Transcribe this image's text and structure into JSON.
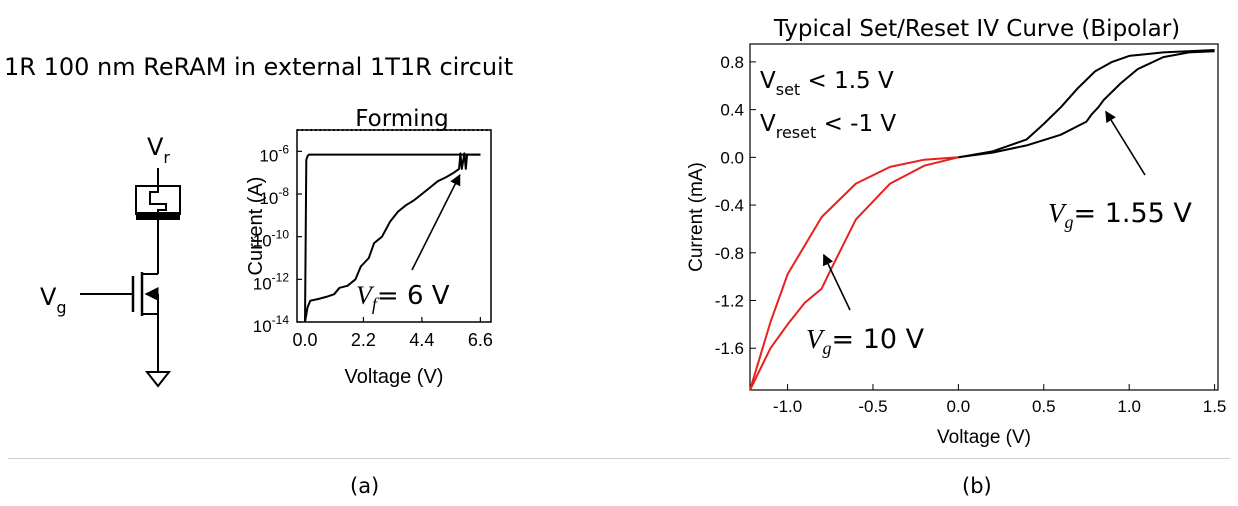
{
  "panel_a": {
    "title": "1R 100 nm ReRAM in external 1T1R circuit",
    "circuit": {
      "top_label_main": "V",
      "top_label_sub": "r",
      "gate_label_main": "V",
      "gate_label_sub": "g",
      "ground_icon": "ground-triangle"
    },
    "caption": "(a)"
  },
  "panel_b": {
    "caption": "(b)"
  },
  "chart_data": [
    {
      "type": "line",
      "title": "Forming",
      "xlabel": "Voltage (V)",
      "ylabel": "Current (A)",
      "x_ticks": [
        "0.0",
        "2.2",
        "4.4",
        "6.6"
      ],
      "x_tick_values": [
        0.0,
        2.2,
        4.4,
        6.6
      ],
      "xlim": [
        -0.3,
        7.0
      ],
      "y_scale": "log",
      "ylim": [
        1e-14,
        1e-05
      ],
      "y_ticks": [
        {
          "value": 1e-06,
          "base": "10",
          "exp": "-6"
        },
        {
          "value": 1e-08,
          "base": "10",
          "exp": "-8"
        },
        {
          "value": 1e-10,
          "base": "10",
          "exp": "-10"
        },
        {
          "value": 1e-12,
          "base": "10",
          "exp": "-12"
        },
        {
          "value": 1e-14,
          "base": "10",
          "exp": "-14"
        }
      ],
      "series": [
        {
          "color": "#000000",
          "x": [
            0.0,
            0.1,
            0.2,
            0.5,
            0.8,
            1.1,
            1.3,
            1.6,
            1.9,
            2.1,
            2.4,
            2.6,
            2.9,
            3.2,
            3.5,
            3.8,
            4.1,
            4.4,
            4.7,
            5.0,
            5.3,
            5.6,
            5.8,
            5.85,
            5.9,
            6.0,
            6.05,
            6.1,
            6.2,
            6.3,
            6.45,
            6.6
          ],
          "y": [
            1e-14,
            5e-14,
            1e-13,
            1.2e-13,
            1.5e-13,
            2e-13,
            4e-13,
            5e-13,
            1e-12,
            4e-12,
            1e-11,
            5e-11,
            1e-10,
            5e-10,
            1.5e-09,
            3e-09,
            5e-09,
            1e-08,
            2e-08,
            4e-08,
            6e-08,
            1e-07,
            1.5e-07,
            8e-07,
            1.5e-07,
            8e-07,
            1.5e-07,
            7e-07,
            7e-07,
            7e-07,
            7e-07,
            7e-07
          ]
        },
        {
          "color": "#000000",
          "x": [
            0.0,
            0.05,
            0.1,
            0.15,
            0.3,
            1.0,
            2.0,
            3.0,
            4.0,
            5.0,
            6.0,
            6.6
          ],
          "y": [
            1e-14,
            4e-07,
            6e-07,
            7e-07,
            7e-07,
            7e-07,
            7e-07,
            7e-07,
            7e-07,
            7e-07,
            7e-07,
            7e-07
          ]
        }
      ],
      "annotation": {
        "sym": "V",
        "sub": "f",
        "text": "= 6 V",
        "points_to": [
          5.9,
          1.2e-07
        ]
      },
      "grid": false
    },
    {
      "type": "line",
      "title": "Typical Set/Reset IV Curve (Bipolar)",
      "xlabel": "Voltage (V)",
      "ylabel": "Current (mA)",
      "x_ticks": [
        "-1.0",
        "-0.5",
        "0.0",
        "0.5",
        "1.0",
        "1.5"
      ],
      "x_tick_values": [
        -1.0,
        -0.5,
        0.0,
        0.5,
        1.0,
        1.5
      ],
      "xlim": [
        -1.22,
        1.52
      ],
      "y_ticks": [
        "0.8",
        "0.4",
        "0.0",
        "-0.4",
        "-0.8",
        "-1.2",
        "-1.6"
      ],
      "y_tick_values": [
        0.8,
        0.4,
        0.0,
        -0.4,
        -0.8,
        -1.2,
        -1.6
      ],
      "ylim": [
        -1.95,
        0.95
      ],
      "series": [
        {
          "color": "#000000",
          "x": [
            0.0,
            0.2,
            0.4,
            0.6,
            0.75,
            0.78,
            0.82,
            0.85,
            0.95,
            1.05,
            1.2,
            1.35,
            1.5
          ],
          "y": [
            0.0,
            0.04,
            0.1,
            0.19,
            0.3,
            0.36,
            0.42,
            0.48,
            0.62,
            0.74,
            0.84,
            0.88,
            0.89
          ]
        },
        {
          "color": "#000000",
          "x": [
            0.0,
            0.2,
            0.4,
            0.5,
            0.6,
            0.7,
            0.8,
            0.9,
            1.0,
            1.2,
            1.5
          ],
          "y": [
            0.0,
            0.05,
            0.15,
            0.28,
            0.42,
            0.58,
            0.72,
            0.8,
            0.85,
            0.88,
            0.9
          ]
        },
        {
          "color": "#e8201e",
          "x": [
            0.0,
            -0.2,
            -0.4,
            -0.6,
            -0.75,
            -0.8,
            -0.9,
            -1.0,
            -1.1,
            -1.22
          ],
          "y": [
            0.0,
            -0.07,
            -0.22,
            -0.52,
            -0.95,
            -1.1,
            -1.22,
            -1.4,
            -1.6,
            -1.95
          ]
        },
        {
          "color": "#e8201e",
          "x": [
            0.0,
            -0.2,
            -0.4,
            -0.6,
            -0.8,
            -1.0,
            -1.1,
            -1.22
          ],
          "y": [
            0.0,
            -0.02,
            -0.08,
            -0.22,
            -0.5,
            -0.98,
            -1.38,
            -1.95
          ]
        }
      ],
      "annotations": [
        {
          "type": "text",
          "lines": [
            {
              "sym": "V",
              "sub": "set",
              "text": " < 1.5 V"
            },
            {
              "sym": "V",
              "sub": "reset",
              "text": " < -1 V"
            }
          ]
        },
        {
          "type": "arrow",
          "sym": "V",
          "sub": "g",
          "text": "= 1.55 V",
          "points_to": [
            0.84,
            0.4
          ]
        },
        {
          "type": "arrow",
          "sym": "V",
          "sub": "g",
          "text": "= 10 V",
          "points_to": [
            -0.8,
            -0.8
          ]
        }
      ],
      "grid": false
    }
  ]
}
